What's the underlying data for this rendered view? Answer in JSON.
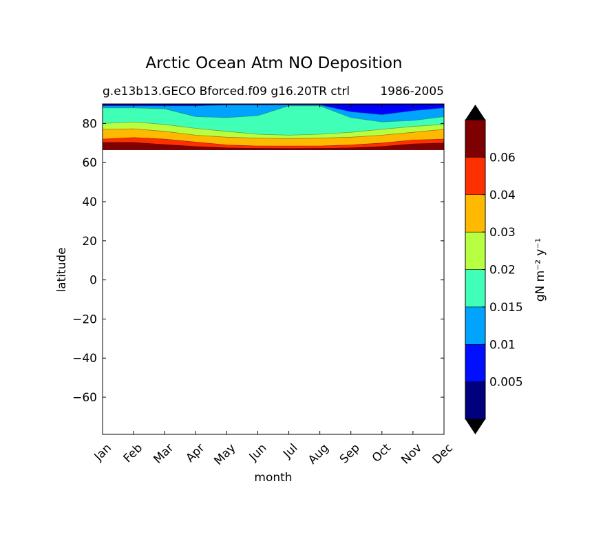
{
  "chart_data": {
    "type": "heatmap",
    "title": "Arctic Ocean Atm NO Deposition",
    "subtitle_left": "g.e13b13.GECO Bforced.f09 g16.20TR ctrl",
    "subtitle_right": "1986-2005",
    "xlabel": "month",
    "ylabel": "latitude",
    "x_ticks": [
      "Jan",
      "Feb",
      "Mar",
      "Apr",
      "May",
      "Jun",
      "Jul",
      "Aug",
      "Sep",
      "Oct",
      "Nov",
      "Dec"
    ],
    "xlim": [
      0,
      11
    ],
    "ylim": [
      -79,
      90
    ],
    "y_ticks": [
      -60,
      -40,
      -20,
      0,
      20,
      40,
      60,
      80
    ],
    "data_lat_min": 66.5,
    "grid": false,
    "colorbar": {
      "label": "gN m⁻² y⁻¹",
      "tick_labels": [
        "0.005",
        "0.01",
        "0.015",
        "0.02",
        "0.03",
        "0.04",
        "0.06"
      ],
      "colors": [
        "#00007f",
        "#0000ff",
        "#0010ff",
        "#00a4ff",
        "#40ffb7",
        "#b7ff40",
        "#ffb900",
        "#ff3000",
        "#7f0000"
      ],
      "extend_colors": [
        "#000000",
        "#000000"
      ]
    },
    "contour_bands": [
      {
        "level_index": 8,
        "top": [
          66.5,
          66.5,
          66.5,
          66.5,
          66.5,
          66.5,
          66.5,
          66.5,
          66.5,
          66.5,
          66.5,
          66.5
        ],
        "bottom": [
          66.5,
          66.5,
          66.5,
          66.5,
          66.5,
          66.5,
          66.5,
          66.5,
          66.5,
          66.5,
          66.5,
          66.5
        ]
      },
      {
        "level_index": 9,
        "top": [
          70.3,
          70.3,
          69.2,
          68.2,
          67.5,
          67.3,
          67.2,
          67.3,
          67.5,
          68.2,
          69.5,
          70.0
        ],
        "bottom": [
          66.5,
          66.5,
          66.5,
          66.5,
          66.5,
          66.5,
          66.5,
          66.5,
          66.5,
          66.5,
          66.5,
          66.5
        ]
      }
    ],
    "band_boundaries": [
      {
        "upper": 90.0,
        "values": [
          90.0,
          90.0,
          90.0,
          90.0,
          90.0,
          90.0,
          90.0,
          90.0,
          90.0,
          90.0,
          90.0,
          90.0
        ]
      },
      {
        "upper": 89.5,
        "values": [
          89.5,
          89.5,
          89.5,
          89.5,
          89.5,
          89.5,
          89.5,
          89.5,
          89.5,
          89.5,
          89.5,
          89.5
        ]
      },
      {
        "upper": 88.0,
        "values": [
          89.0,
          89.0,
          89.0,
          89.0,
          89.5,
          89.5,
          89.5,
          89.5,
          86.0,
          84.5,
          86.5,
          88.0
        ]
      },
      {
        "upper": 86.0,
        "values": [
          88.0,
          88.0,
          87.5,
          83.5,
          83.0,
          84.0,
          89.0,
          89.0,
          83.0,
          80.8,
          81.5,
          83.5
        ]
      },
      {
        "upper": 80.0,
        "values": [
          80.0,
          80.8,
          79.5,
          77.5,
          76.0,
          74.5,
          74.0,
          74.5,
          75.5,
          77.0,
          78.5,
          79.5
        ]
      },
      {
        "upper": 76.0,
        "values": [
          77.0,
          77.3,
          76.0,
          74.0,
          73.0,
          72.5,
          72.3,
          72.5,
          73.0,
          74.0,
          75.5,
          77.0
        ]
      },
      {
        "upper": 72.0,
        "values": [
          72.0,
          72.8,
          72.0,
          70.5,
          69.0,
          68.5,
          68.5,
          68.5,
          69.0,
          70.0,
          71.5,
          72.0
        ]
      },
      {
        "upper": 70.0,
        "values": [
          70.3,
          70.3,
          69.2,
          68.2,
          67.5,
          67.3,
          67.2,
          67.3,
          67.5,
          68.2,
          69.5,
          70.0
        ]
      },
      {
        "upper": 66.5,
        "values": [
          66.5,
          66.5,
          66.5,
          66.5,
          66.5,
          66.5,
          66.5,
          66.5,
          66.5,
          66.5,
          66.5,
          66.5
        ]
      }
    ],
    "band_colors_top_down": [
      "#00007f",
      "#0000ff",
      "#00a4ff",
      "#40ffb7",
      "#b7ff40",
      "#ffb900",
      "#ff3000",
      "#7f0000",
      "#000000"
    ]
  }
}
